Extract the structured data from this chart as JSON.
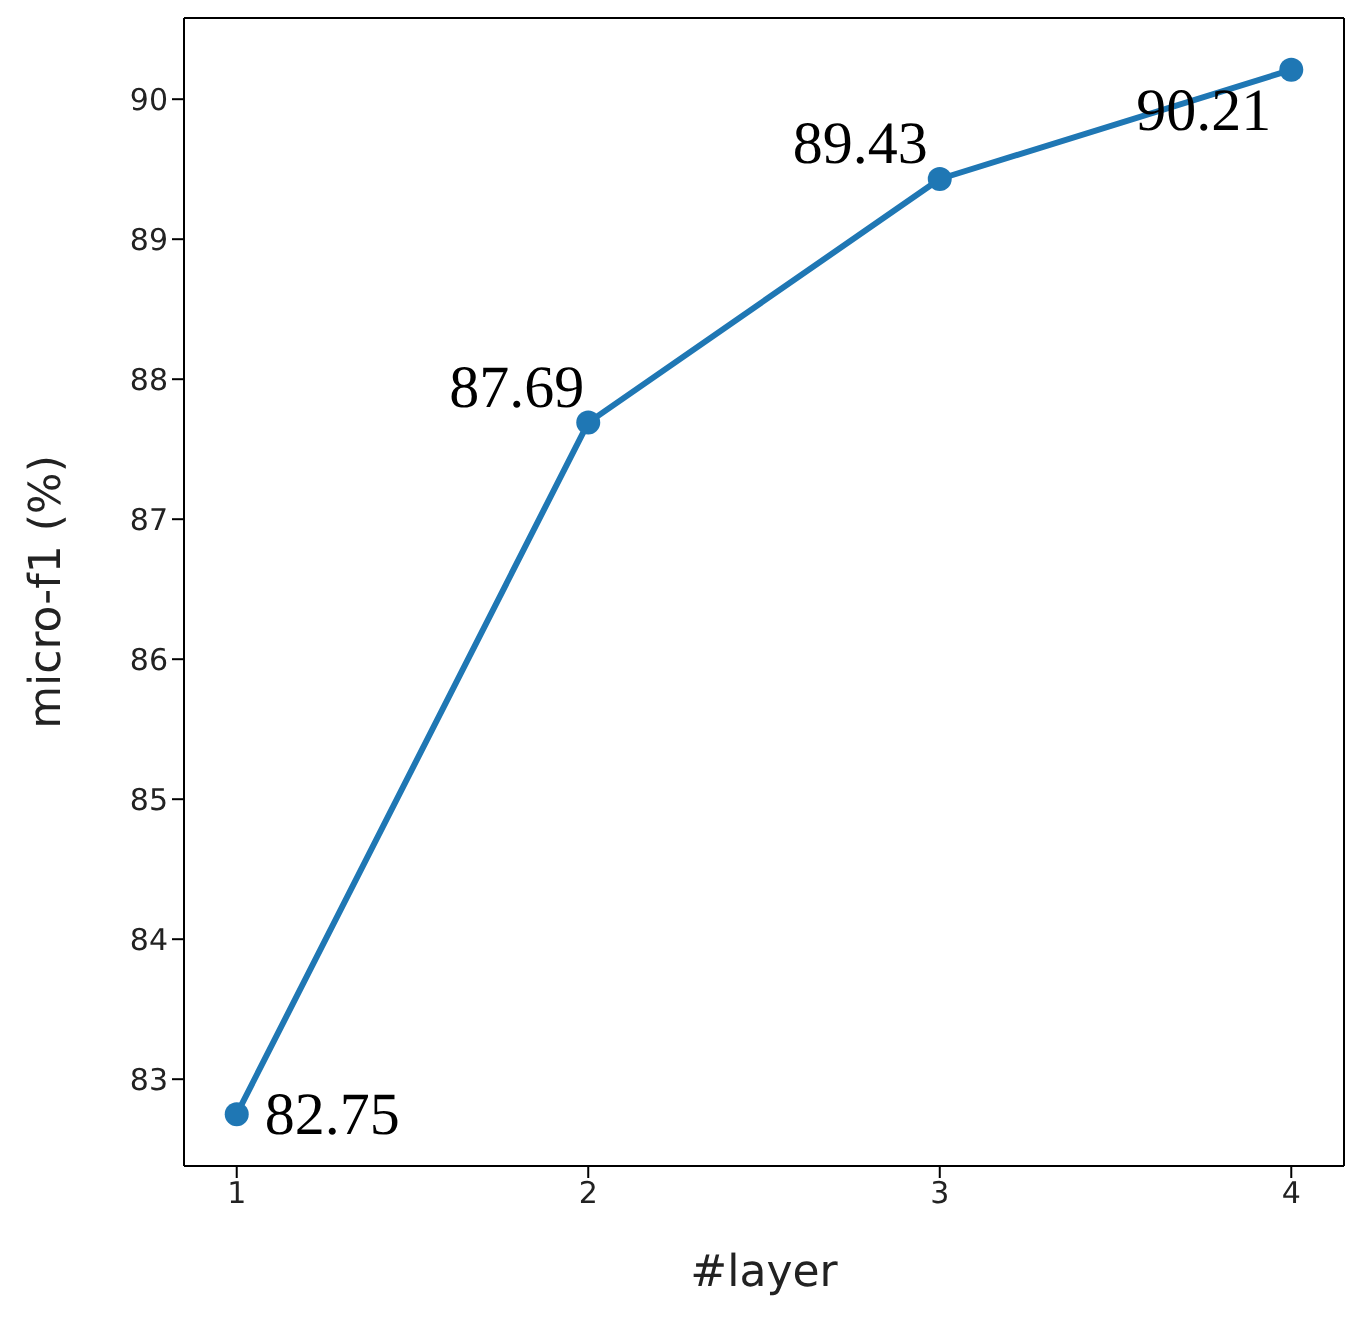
{
  "chart_data": {
    "type": "line",
    "xlabel": "#layer",
    "ylabel": "micro-f1 (%)",
    "x": [
      1,
      2,
      3,
      4
    ],
    "series": [
      {
        "color": "#1f77b4",
        "values": [
          82.75,
          87.69,
          89.43,
          90.21
        ]
      }
    ],
    "xlim": [
      0.85,
      4.15
    ],
    "xticks": [
      1,
      2,
      3,
      4
    ],
    "ylim": [
      82.38,
      90.58
    ],
    "yticks": [
      83,
      84,
      85,
      86,
      87,
      88,
      89,
      90
    ],
    "marker": "circle",
    "line_style": "solid",
    "data_labels": true,
    "grid": false,
    "legend": false
  }
}
